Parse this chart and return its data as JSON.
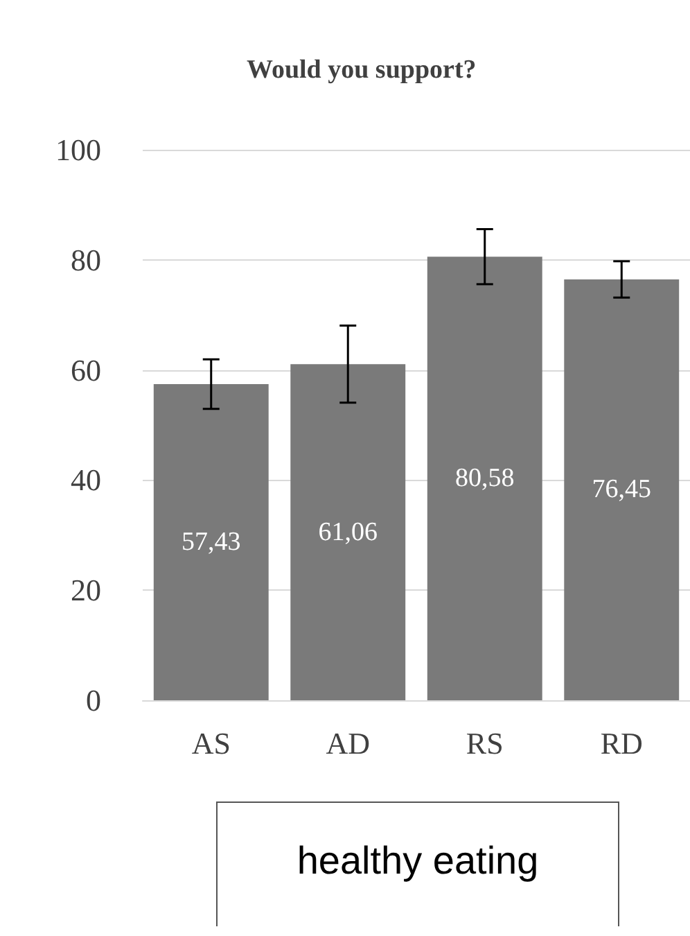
{
  "chart_data": {
    "type": "bar",
    "title": "Would you support?",
    "categories": [
      "AS",
      "AD",
      "RS",
      "RD"
    ],
    "values": [
      57.43,
      61.06,
      80.58,
      76.45
    ],
    "value_labels": [
      "57,43",
      "61,06",
      "80,58",
      "76,45"
    ],
    "errors": [
      4.5,
      7,
      5,
      3.3
    ],
    "color": "#7a7a7a",
    "ylim": [
      0,
      100
    ],
    "yticks": [
      0,
      20,
      40,
      60,
      80,
      100
    ],
    "grid": "y",
    "annotations": [
      "healthy eating"
    ]
  }
}
